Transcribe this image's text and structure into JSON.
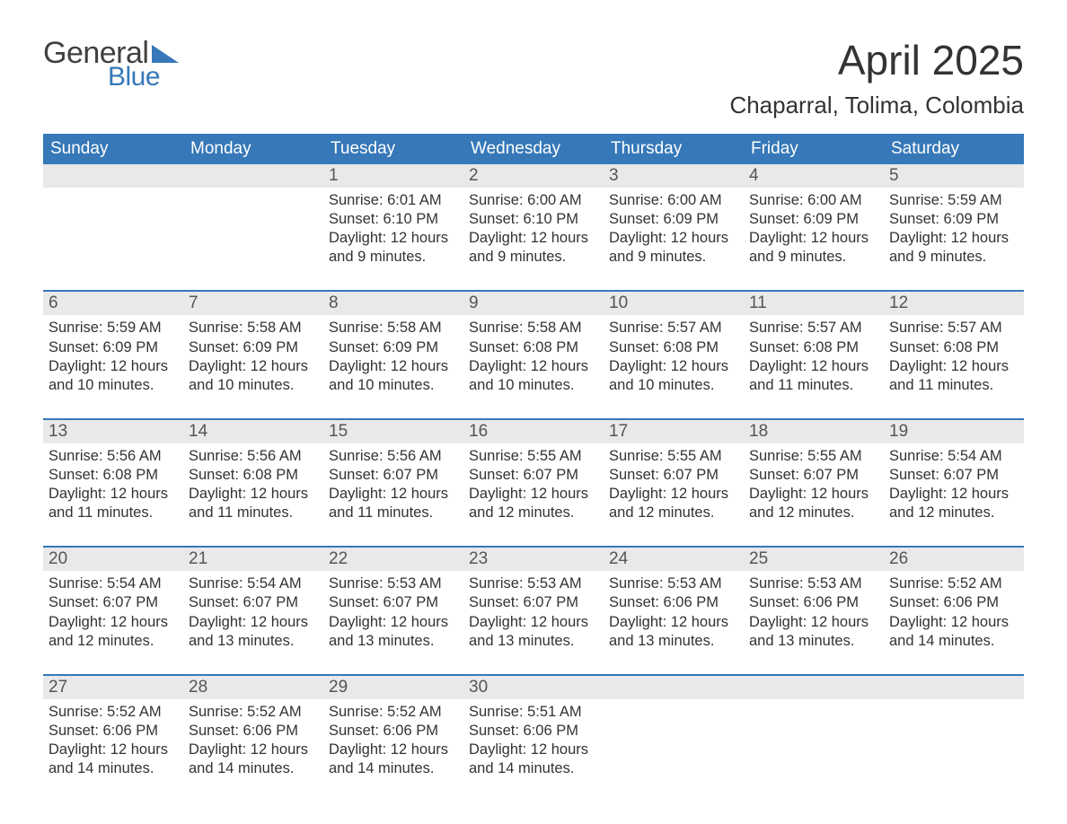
{
  "logo": {
    "word1": "General",
    "word2": "Blue",
    "text_color": "#404040",
    "accent_color": "#3678b8"
  },
  "title": "April 2025",
  "location": "Chaparral, Tolima, Colombia",
  "colors": {
    "header_bg": "#3678b8",
    "header_text": "#ffffff",
    "daynum_bg": "#e9e9e9",
    "body_text": "#333333",
    "page_bg": "#ffffff",
    "week_border": "#3678b8"
  },
  "typography": {
    "title_fontsize": 46,
    "location_fontsize": 26,
    "weekday_fontsize": 19,
    "daynum_fontsize": 19,
    "body_fontsize": 16.5
  },
  "weekdays": [
    "Sunday",
    "Monday",
    "Tuesday",
    "Wednesday",
    "Thursday",
    "Friday",
    "Saturday"
  ],
  "weeks": [
    {
      "days": [
        {
          "num": "",
          "sunrise": "",
          "sunset": "",
          "daylight": ""
        },
        {
          "num": "",
          "sunrise": "",
          "sunset": "",
          "daylight": ""
        },
        {
          "num": "1",
          "sunrise": "Sunrise: 6:01 AM",
          "sunset": "Sunset: 6:10 PM",
          "daylight": "Daylight: 12 hours and 9 minutes."
        },
        {
          "num": "2",
          "sunrise": "Sunrise: 6:00 AM",
          "sunset": "Sunset: 6:10 PM",
          "daylight": "Daylight: 12 hours and 9 minutes."
        },
        {
          "num": "3",
          "sunrise": "Sunrise: 6:00 AM",
          "sunset": "Sunset: 6:09 PM",
          "daylight": "Daylight: 12 hours and 9 minutes."
        },
        {
          "num": "4",
          "sunrise": "Sunrise: 6:00 AM",
          "sunset": "Sunset: 6:09 PM",
          "daylight": "Daylight: 12 hours and 9 minutes."
        },
        {
          "num": "5",
          "sunrise": "Sunrise: 5:59 AM",
          "sunset": "Sunset: 6:09 PM",
          "daylight": "Daylight: 12 hours and 9 minutes."
        }
      ]
    },
    {
      "days": [
        {
          "num": "6",
          "sunrise": "Sunrise: 5:59 AM",
          "sunset": "Sunset: 6:09 PM",
          "daylight": "Daylight: 12 hours and 10 minutes."
        },
        {
          "num": "7",
          "sunrise": "Sunrise: 5:58 AM",
          "sunset": "Sunset: 6:09 PM",
          "daylight": "Daylight: 12 hours and 10 minutes."
        },
        {
          "num": "8",
          "sunrise": "Sunrise: 5:58 AM",
          "sunset": "Sunset: 6:09 PM",
          "daylight": "Daylight: 12 hours and 10 minutes."
        },
        {
          "num": "9",
          "sunrise": "Sunrise: 5:58 AM",
          "sunset": "Sunset: 6:08 PM",
          "daylight": "Daylight: 12 hours and 10 minutes."
        },
        {
          "num": "10",
          "sunrise": "Sunrise: 5:57 AM",
          "sunset": "Sunset: 6:08 PM",
          "daylight": "Daylight: 12 hours and 10 minutes."
        },
        {
          "num": "11",
          "sunrise": "Sunrise: 5:57 AM",
          "sunset": "Sunset: 6:08 PM",
          "daylight": "Daylight: 12 hours and 11 minutes."
        },
        {
          "num": "12",
          "sunrise": "Sunrise: 5:57 AM",
          "sunset": "Sunset: 6:08 PM",
          "daylight": "Daylight: 12 hours and 11 minutes."
        }
      ]
    },
    {
      "days": [
        {
          "num": "13",
          "sunrise": "Sunrise: 5:56 AM",
          "sunset": "Sunset: 6:08 PM",
          "daylight": "Daylight: 12 hours and 11 minutes."
        },
        {
          "num": "14",
          "sunrise": "Sunrise: 5:56 AM",
          "sunset": "Sunset: 6:08 PM",
          "daylight": "Daylight: 12 hours and 11 minutes."
        },
        {
          "num": "15",
          "sunrise": "Sunrise: 5:56 AM",
          "sunset": "Sunset: 6:07 PM",
          "daylight": "Daylight: 12 hours and 11 minutes."
        },
        {
          "num": "16",
          "sunrise": "Sunrise: 5:55 AM",
          "sunset": "Sunset: 6:07 PM",
          "daylight": "Daylight: 12 hours and 12 minutes."
        },
        {
          "num": "17",
          "sunrise": "Sunrise: 5:55 AM",
          "sunset": "Sunset: 6:07 PM",
          "daylight": "Daylight: 12 hours and 12 minutes."
        },
        {
          "num": "18",
          "sunrise": "Sunrise: 5:55 AM",
          "sunset": "Sunset: 6:07 PM",
          "daylight": "Daylight: 12 hours and 12 minutes."
        },
        {
          "num": "19",
          "sunrise": "Sunrise: 5:54 AM",
          "sunset": "Sunset: 6:07 PM",
          "daylight": "Daylight: 12 hours and 12 minutes."
        }
      ]
    },
    {
      "days": [
        {
          "num": "20",
          "sunrise": "Sunrise: 5:54 AM",
          "sunset": "Sunset: 6:07 PM",
          "daylight": "Daylight: 12 hours and 12 minutes."
        },
        {
          "num": "21",
          "sunrise": "Sunrise: 5:54 AM",
          "sunset": "Sunset: 6:07 PM",
          "daylight": "Daylight: 12 hours and 13 minutes."
        },
        {
          "num": "22",
          "sunrise": "Sunrise: 5:53 AM",
          "sunset": "Sunset: 6:07 PM",
          "daylight": "Daylight: 12 hours and 13 minutes."
        },
        {
          "num": "23",
          "sunrise": "Sunrise: 5:53 AM",
          "sunset": "Sunset: 6:07 PM",
          "daylight": "Daylight: 12 hours and 13 minutes."
        },
        {
          "num": "24",
          "sunrise": "Sunrise: 5:53 AM",
          "sunset": "Sunset: 6:06 PM",
          "daylight": "Daylight: 12 hours and 13 minutes."
        },
        {
          "num": "25",
          "sunrise": "Sunrise: 5:53 AM",
          "sunset": "Sunset: 6:06 PM",
          "daylight": "Daylight: 12 hours and 13 minutes."
        },
        {
          "num": "26",
          "sunrise": "Sunrise: 5:52 AM",
          "sunset": "Sunset: 6:06 PM",
          "daylight": "Daylight: 12 hours and 14 minutes."
        }
      ]
    },
    {
      "days": [
        {
          "num": "27",
          "sunrise": "Sunrise: 5:52 AM",
          "sunset": "Sunset: 6:06 PM",
          "daylight": "Daylight: 12 hours and 14 minutes."
        },
        {
          "num": "28",
          "sunrise": "Sunrise: 5:52 AM",
          "sunset": "Sunset: 6:06 PM",
          "daylight": "Daylight: 12 hours and 14 minutes."
        },
        {
          "num": "29",
          "sunrise": "Sunrise: 5:52 AM",
          "sunset": "Sunset: 6:06 PM",
          "daylight": "Daylight: 12 hours and 14 minutes."
        },
        {
          "num": "30",
          "sunrise": "Sunrise: 5:51 AM",
          "sunset": "Sunset: 6:06 PM",
          "daylight": "Daylight: 12 hours and 14 minutes."
        },
        {
          "num": "",
          "sunrise": "",
          "sunset": "",
          "daylight": ""
        },
        {
          "num": "",
          "sunrise": "",
          "sunset": "",
          "daylight": ""
        },
        {
          "num": "",
          "sunrise": "",
          "sunset": "",
          "daylight": ""
        }
      ]
    }
  ]
}
